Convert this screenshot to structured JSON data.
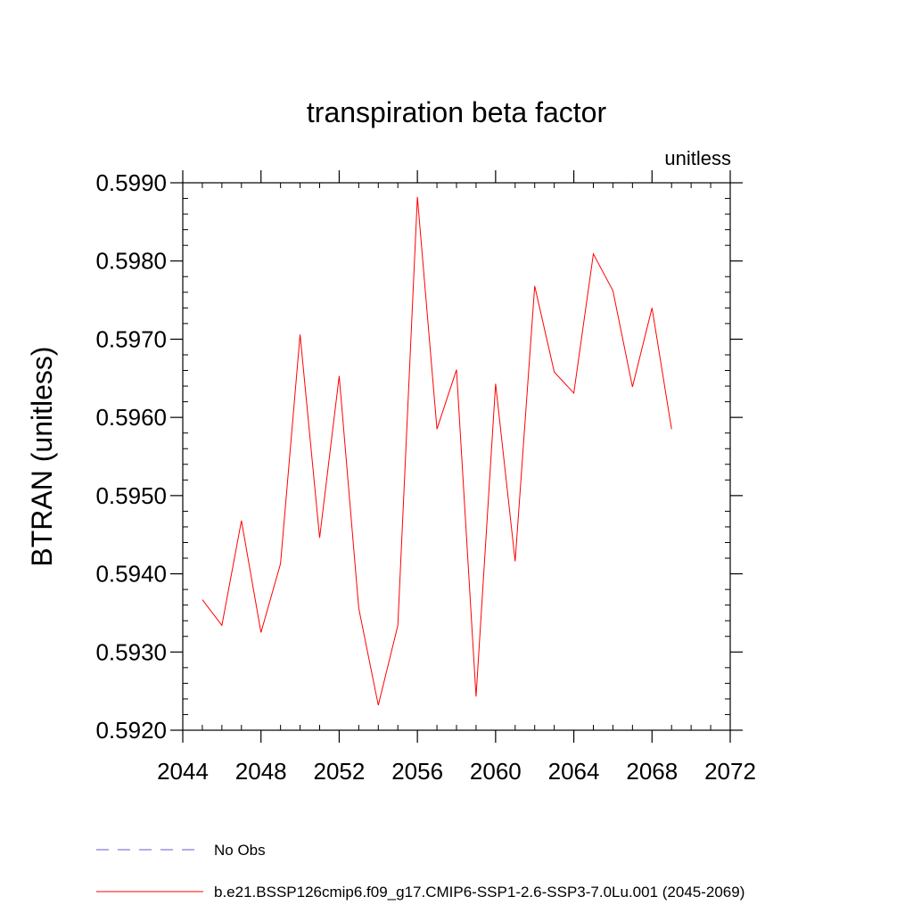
{
  "chart_data": {
    "type": "line",
    "title": "transpiration beta factor",
    "units_label": "unitless",
    "ylabel": "BTRAN  (unitless)",
    "xlabel": "",
    "xlim": [
      2044,
      2072
    ],
    "ylim": [
      0.592,
      0.599
    ],
    "x_ticks": [
      2044,
      2048,
      2052,
      2056,
      2060,
      2064,
      2068,
      2072
    ],
    "x_tick_labels": [
      "2044",
      "2048",
      "2052",
      "2056",
      "2060",
      "2064",
      "2068",
      "2072"
    ],
    "y_ticks": [
      0.592,
      0.593,
      0.594,
      0.595,
      0.596,
      0.597,
      0.598,
      0.599
    ],
    "y_tick_labels": [
      "0.5920",
      "0.5930",
      "0.5940",
      "0.5950",
      "0.5960",
      "0.5970",
      "0.5980",
      "0.5990"
    ],
    "grid": false,
    "legend_placement": "bottom",
    "series": [
      {
        "name": "No Obs",
        "color": "#6a5acd",
        "dashed": true,
        "x": [],
        "y": []
      },
      {
        "name": "b.e21.BSSP126cmip6.f09_g17.CMIP6-SSP1-2.6-SSP3-7.0Lu.001 (2045-2069)",
        "color": "#ff0000",
        "dashed": false,
        "x": [
          2045,
          2046,
          2047,
          2048,
          2049,
          2050,
          2051,
          2052,
          2053,
          2054,
          2055,
          2056,
          2057,
          2058,
          2059,
          2060,
          2061,
          2062,
          2063,
          2064,
          2065,
          2066,
          2067,
          2068,
          2069
        ],
        "y": [
          0.59367,
          0.59334,
          0.59468,
          0.59325,
          0.59413,
          0.59706,
          0.59446,
          0.59653,
          0.59356,
          0.59232,
          0.59334,
          0.59882,
          0.59585,
          0.59661,
          0.59243,
          0.59643,
          0.59416,
          0.59768,
          0.59658,
          0.59631,
          0.59809,
          0.59762,
          0.59639,
          0.5974,
          0.59585
        ]
      }
    ]
  }
}
